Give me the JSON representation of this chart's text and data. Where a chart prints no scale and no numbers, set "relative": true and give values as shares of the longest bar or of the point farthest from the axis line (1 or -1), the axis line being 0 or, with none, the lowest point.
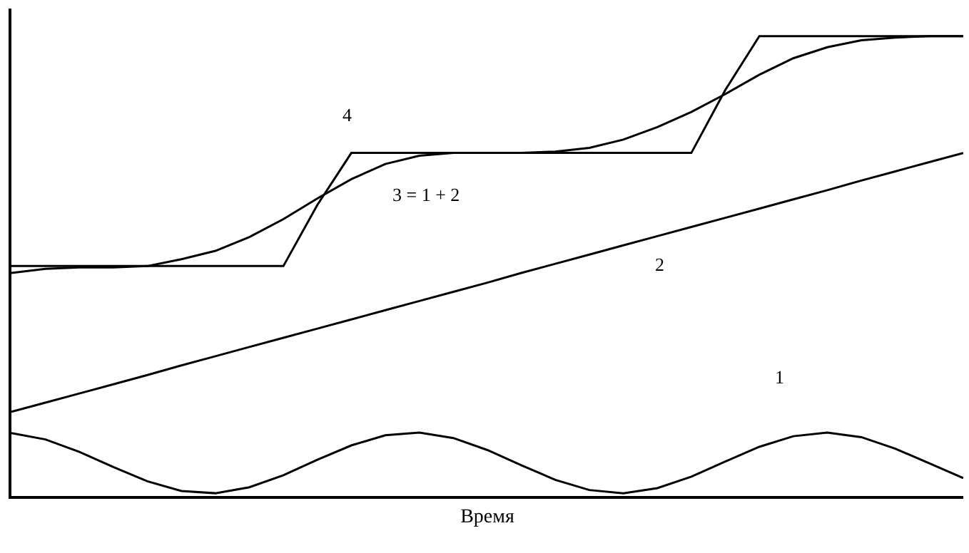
{
  "chart_data": {
    "type": "line",
    "relative": true,
    "xlabel": "Время",
    "legend": false,
    "marker": "none",
    "line_style": "solid",
    "categories": [
      null,
      null,
      null,
      null,
      null,
      null,
      null,
      null,
      null,
      null,
      null,
      null,
      null,
      null,
      null,
      null,
      null,
      null,
      null,
      null,
      null,
      null,
      null,
      null,
      null,
      null,
      null,
      null,
      null
    ],
    "series": [
      {
        "name": "1",
        "color": "#000000",
        "values": [
          0.137,
          0.123,
          0.096,
          0.063,
          0.032,
          0.011,
          0.006,
          0.019,
          0.045,
          0.079,
          0.11,
          0.132,
          0.138,
          0.126,
          0.1,
          0.067,
          0.035,
          0.013,
          0.006,
          0.017,
          0.042,
          0.075,
          0.107,
          0.13,
          0.138,
          0.128,
          0.103,
          0.071,
          0.039
        ]
      },
      {
        "name": "2",
        "color": "#000000",
        "values": [
          0.183,
          0.203,
          0.223,
          0.243,
          0.263,
          0.284,
          0.304,
          0.324,
          0.344,
          0.364,
          0.384,
          0.404,
          0.424,
          0.444,
          0.464,
          0.485,
          0.505,
          0.525,
          0.545,
          0.565,
          0.585,
          0.605,
          0.625,
          0.645,
          0.665,
          0.686,
          0.706,
          0.726,
          0.746
        ]
      },
      {
        "name": "3 = 1 + 2",
        "color": "#000000",
        "values": [
          0.485,
          0.494,
          0.497,
          0.497,
          0.5,
          0.515,
          0.533,
          0.563,
          0.602,
          0.647,
          0.689,
          0.722,
          0.74,
          0.746,
          0.746,
          0.746,
          0.749,
          0.757,
          0.775,
          0.802,
          0.835,
          0.874,
          0.916,
          0.952,
          0.976,
          0.991,
          0.997,
          1.0,
          1.0
        ]
      },
      {
        "name": "4",
        "color": "#000000",
        "values": [
          0.5,
          0.5,
          0.5,
          0.5,
          0.5,
          0.5,
          0.5,
          0.5,
          0.5,
          0.633,
          0.746,
          0.746,
          0.746,
          0.746,
          0.746,
          0.746,
          0.746,
          0.746,
          0.746,
          0.746,
          0.746,
          0.883,
          1.0,
          1.0,
          1.0,
          1.0,
          1.0,
          1.0,
          1.0
        ]
      }
    ]
  }
}
